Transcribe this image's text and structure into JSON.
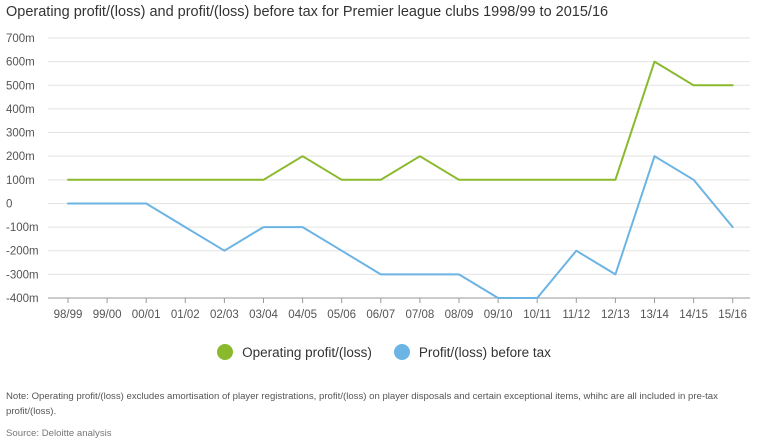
{
  "title": "Operating profit/(loss) and profit/(loss) before tax for Premier league clubs 1998/99 to 2015/16",
  "note": "Note:  Operating profit/(loss) excludes amortisation of player registrations, profit/(loss) on player disposals and certain exceptional items, whihc are all included in pre-tax profit/(loss).",
  "source": "Source: Deloitte analysis",
  "colors": {
    "operating": "#8ab92d",
    "pretax": "#6cb4e4",
    "grid": "#e3e3e3",
    "axis": "#9a9a9a"
  },
  "chart_data": {
    "type": "line",
    "title": "Operating profit/(loss) and profit/(loss) before tax for Premier league clubs 1998/99 to 2015/16",
    "xlabel": "",
    "ylabel": "",
    "ylim": [
      -400,
      700
    ],
    "yticks": [
      700,
      600,
      500,
      400,
      300,
      200,
      100,
      0,
      -100,
      -200,
      -300,
      -400
    ],
    "ytick_labels": [
      "700m",
      "600m",
      "500m",
      "400m",
      "300m",
      "200m",
      "100m",
      "0",
      "-100m",
      "-200m",
      "-300m",
      "-400m"
    ],
    "categories": [
      "98/99",
      "99/00",
      "00/01",
      "01/02",
      "02/03",
      "03/04",
      "04/05",
      "05/06",
      "06/07",
      "07/08",
      "08/09",
      "09/10",
      "10/11",
      "11/12",
      "12/13",
      "13/14",
      "14/15",
      "15/16"
    ],
    "series": [
      {
        "name": "Operating profit/(loss)",
        "values": [
          100,
          100,
          100,
          100,
          100,
          100,
          200,
          100,
          100,
          200,
          100,
          100,
          100,
          100,
          100,
          600,
          500,
          500
        ]
      },
      {
        "name": "Profit/(loss) before tax",
        "values": [
          0,
          0,
          0,
          -100,
          -200,
          -100,
          -100,
          -200,
          -300,
          -300,
          -300,
          -400,
          -400,
          -200,
          -300,
          200,
          100,
          -100
        ]
      }
    ],
    "grid": true,
    "legend": "bottom-center"
  }
}
